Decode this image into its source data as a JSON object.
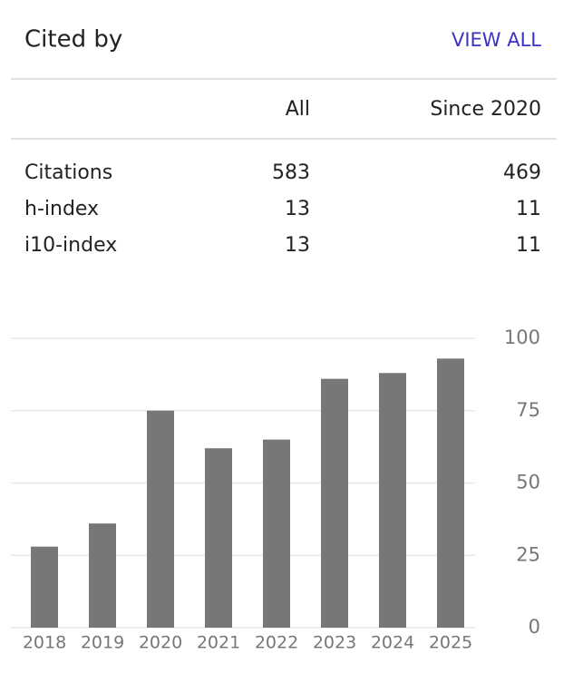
{
  "header": {
    "title": "Cited by",
    "link": "VIEW ALL"
  },
  "table": {
    "columns": [
      "All",
      "Since 2020"
    ],
    "rows": [
      [
        "Citations",
        583,
        469
      ],
      [
        "h-index",
        13,
        11
      ],
      [
        "i10-index",
        13,
        11
      ]
    ]
  },
  "chart_data": {
    "type": "bar",
    "categories": [
      "2018",
      "2019",
      "2020",
      "2021",
      "2022",
      "2023",
      "2024",
      "2025"
    ],
    "values": [
      28,
      36,
      75,
      62,
      65,
      86,
      88,
      93
    ],
    "color": "#777777",
    "ylim": [
      0,
      100
    ],
    "yticks": [
      0,
      25,
      50,
      75,
      100
    ],
    "grid": true
  }
}
